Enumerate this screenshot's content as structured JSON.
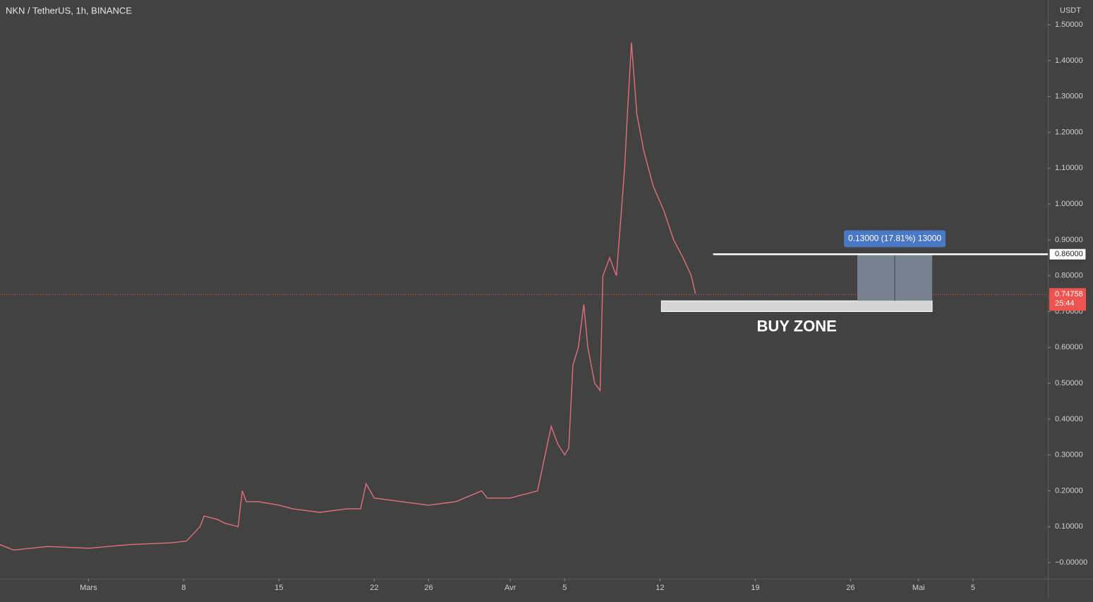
{
  "chart_data": {
    "type": "line",
    "title": "NKN / TetherUS, 1h, BINANCE",
    "y_unit": "USDT",
    "color": "#e0707a",
    "grid": false,
    "x": [
      -6.5,
      -5.5,
      -3,
      0,
      3,
      6,
      7.2,
      8.2,
      8.5,
      9.5,
      10,
      11,
      11.3,
      11.6,
      12.5,
      14,
      15,
      17,
      19,
      20,
      20.4,
      21,
      23,
      25,
      27,
      28.9,
      29.3,
      31,
      32,
      33,
      34,
      34.5,
      35,
      35.3,
      35.6,
      36,
      36.4,
      36.7,
      37.2,
      37.6,
      37.8,
      38.3,
      38.8,
      39.2,
      39.4,
      39.6,
      39.9,
      40.3,
      40.8,
      41.5,
      42.3,
      43,
      43.7,
      44.3,
      44.6
    ],
    "values": [
      0.05,
      0.035,
      0.045,
      0.04,
      0.05,
      0.055,
      0.06,
      0.1,
      0.13,
      0.12,
      0.11,
      0.1,
      0.2,
      0.17,
      0.17,
      0.16,
      0.15,
      0.14,
      0.15,
      0.15,
      0.22,
      0.18,
      0.17,
      0.16,
      0.17,
      0.2,
      0.18,
      0.18,
      0.19,
      0.2,
      0.38,
      0.33,
      0.3,
      0.32,
      0.55,
      0.6,
      0.72,
      0.6,
      0.5,
      0.48,
      0.8,
      0.85,
      0.8,
      1.0,
      1.1,
      1.25,
      1.45,
      1.25,
      1.15,
      1.05,
      0.98,
      0.9,
      0.85,
      0.8,
      0.75
    ],
    "xlim": [
      -6.5,
      70.5
    ],
    "xticks": [
      {
        "value": 0,
        "label": "Mars"
      },
      {
        "value": 7,
        "label": "8"
      },
      {
        "value": 14,
        "label": "15"
      },
      {
        "value": 21,
        "label": "22"
      },
      {
        "value": 25,
        "label": "26"
      },
      {
        "value": 31,
        "label": "Avr"
      },
      {
        "value": 35,
        "label": "5"
      },
      {
        "value": 42,
        "label": "12"
      },
      {
        "value": 49,
        "label": "19"
      },
      {
        "value": 56,
        "label": "26"
      },
      {
        "value": 61,
        "label": "Mai"
      },
      {
        "value": 65,
        "label": "5"
      }
    ],
    "ylim": [
      -0.045,
      1.569
    ],
    "yticks": [
      {
        "value": 1.5,
        "label": "1.50000"
      },
      {
        "value": 1.4,
        "label": "1.40000"
      },
      {
        "value": 1.3,
        "label": "1.30000"
      },
      {
        "value": 1.2,
        "label": "1.20000"
      },
      {
        "value": 1.1,
        "label": "1.10000"
      },
      {
        "value": 1.0,
        "label": "1.00000"
      },
      {
        "value": 0.9,
        "label": "0.90000"
      },
      {
        "value": 0.8,
        "label": "0.80000"
      },
      {
        "value": 0.7,
        "label": "0.70000"
      },
      {
        "value": 0.6,
        "label": "0.60000"
      },
      {
        "value": 0.5,
        "label": "0.50000"
      },
      {
        "value": 0.4,
        "label": "0.40000"
      },
      {
        "value": 0.3,
        "label": "0.30000"
      },
      {
        "value": 0.2,
        "label": "0.20000"
      },
      {
        "value": 0.1,
        "label": "0.10000"
      },
      {
        "value": 0,
        "label": "−0.00000"
      }
    ],
    "annotations": {
      "resistance": {
        "value": 0.86,
        "label": "0.86000",
        "x_start": 45.9
      },
      "buy_zone": {
        "text": "BUY ZONE",
        "from": 0.7,
        "to": 0.73,
        "x": [
          42.1,
          62
        ]
      },
      "measure": {
        "text": "0.13000 (17.81%) 13000",
        "from": 0.73,
        "to": 0.86,
        "x": [
          56.5,
          62
        ]
      },
      "last_price": {
        "value": 0.74758,
        "label": "0.74758",
        "countdown": "25:44"
      }
    }
  }
}
